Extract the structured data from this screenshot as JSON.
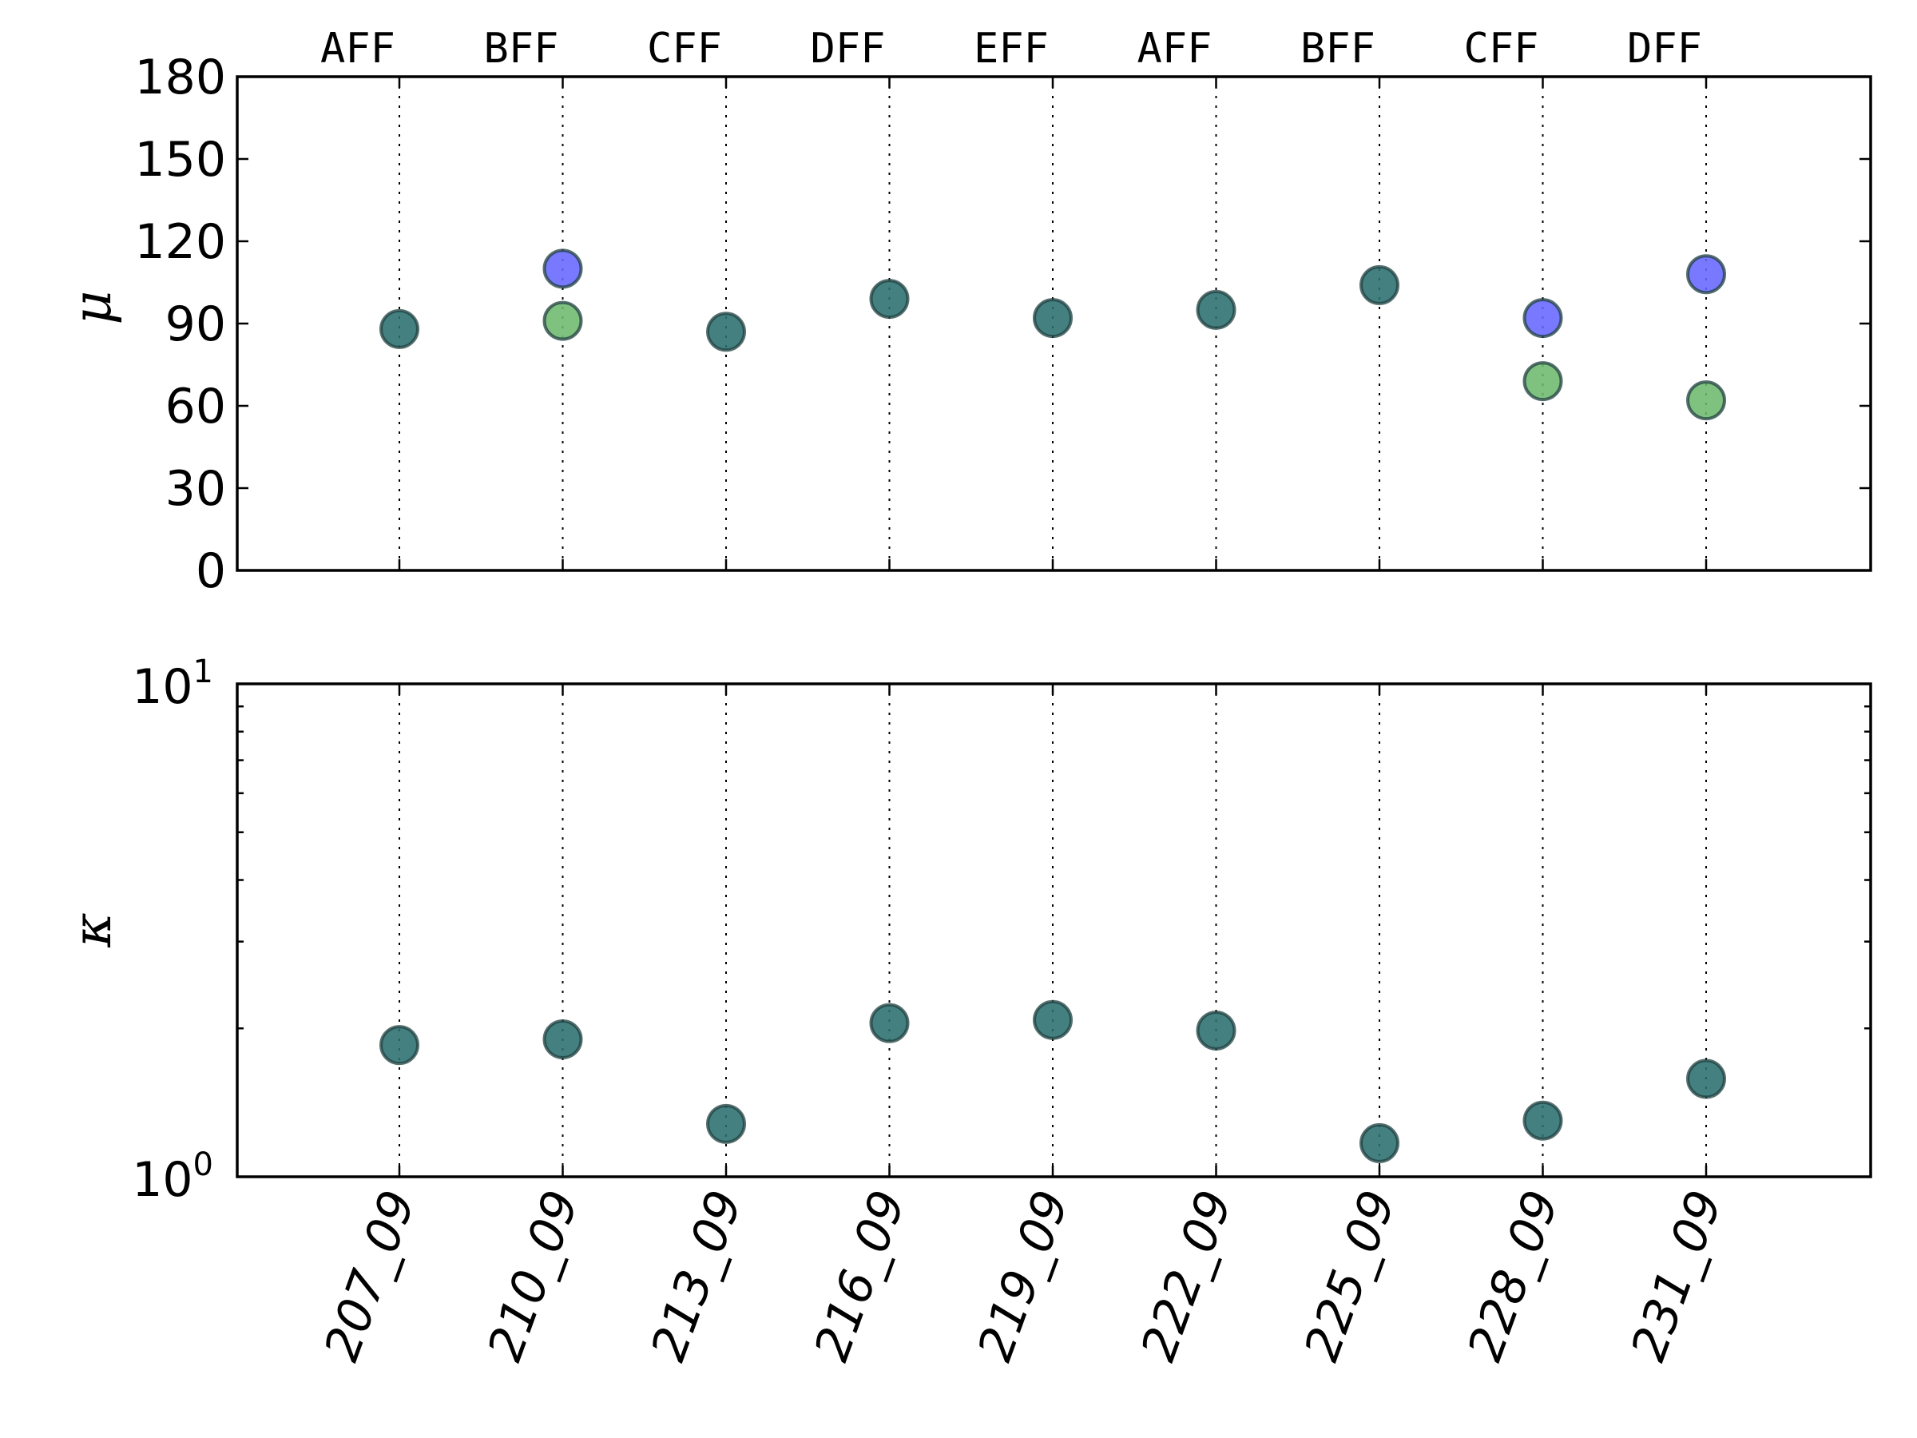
{
  "chart_data": [
    {
      "type": "scatter",
      "ylabel": "μ",
      "xlabel": "",
      "ylim": [
        0,
        180
      ],
      "yticks": [
        0,
        30,
        60,
        90,
        120,
        150,
        180
      ],
      "top_labels": [
        "AFF",
        "BFF",
        "CFF",
        "DFF",
        "EFF",
        "AFF",
        "BFF",
        "CFF",
        "DFF"
      ],
      "categories": [
        "207_09",
        "210_09",
        "213_09",
        "216_09",
        "219_09",
        "222_09",
        "225_09",
        "228_09",
        "231_09"
      ],
      "vertical_gridlines": "dotted at each category",
      "series": [
        {
          "color": "#2a6e6e",
          "points": [
            {
              "x": "207_09",
              "y": 88
            },
            {
              "x": "213_09",
              "y": 87
            },
            {
              "x": "216_09",
              "y": 99
            },
            {
              "x": "219_09",
              "y": 92
            },
            {
              "x": "222_09",
              "y": 95
            },
            {
              "x": "225_09",
              "y": 104
            }
          ]
        },
        {
          "color": "#6666ff",
          "points": [
            {
              "x": "210_09",
              "y": 110
            },
            {
              "x": "228_09",
              "y": 92
            },
            {
              "x": "231_09",
              "y": 108
            }
          ]
        },
        {
          "color": "#6db86d",
          "points": [
            {
              "x": "210_09",
              "y": 91
            },
            {
              "x": "228_09",
              "y": 69
            },
            {
              "x": "231_09",
              "y": 62
            }
          ]
        }
      ]
    },
    {
      "type": "scatter",
      "ylabel": "κ",
      "xlabel": "",
      "yscale": "log",
      "ylim": [
        1,
        10
      ],
      "ytick_labels": [
        {
          "base": "10",
          "exp": "0",
          "value": 1
        },
        {
          "base": "10",
          "exp": "1",
          "value": 10
        }
      ],
      "categories": [
        "207_09",
        "210_09",
        "213_09",
        "216_09",
        "219_09",
        "222_09",
        "225_09",
        "228_09",
        "231_09"
      ],
      "vertical_gridlines": "dotted at each category",
      "series": [
        {
          "color": "#2a6e6e",
          "points": [
            {
              "x": "207_09",
              "y": 1.85
            },
            {
              "x": "210_09",
              "y": 1.9
            },
            {
              "x": "213_09",
              "y": 1.28
            },
            {
              "x": "216_09",
              "y": 2.05
            },
            {
              "x": "219_09",
              "y": 2.08
            },
            {
              "x": "222_09",
              "y": 1.98
            },
            {
              "x": "225_09",
              "y": 1.17
            },
            {
              "x": "228_09",
              "y": 1.3
            },
            {
              "x": "231_09",
              "y": 1.58
            }
          ]
        }
      ]
    }
  ]
}
